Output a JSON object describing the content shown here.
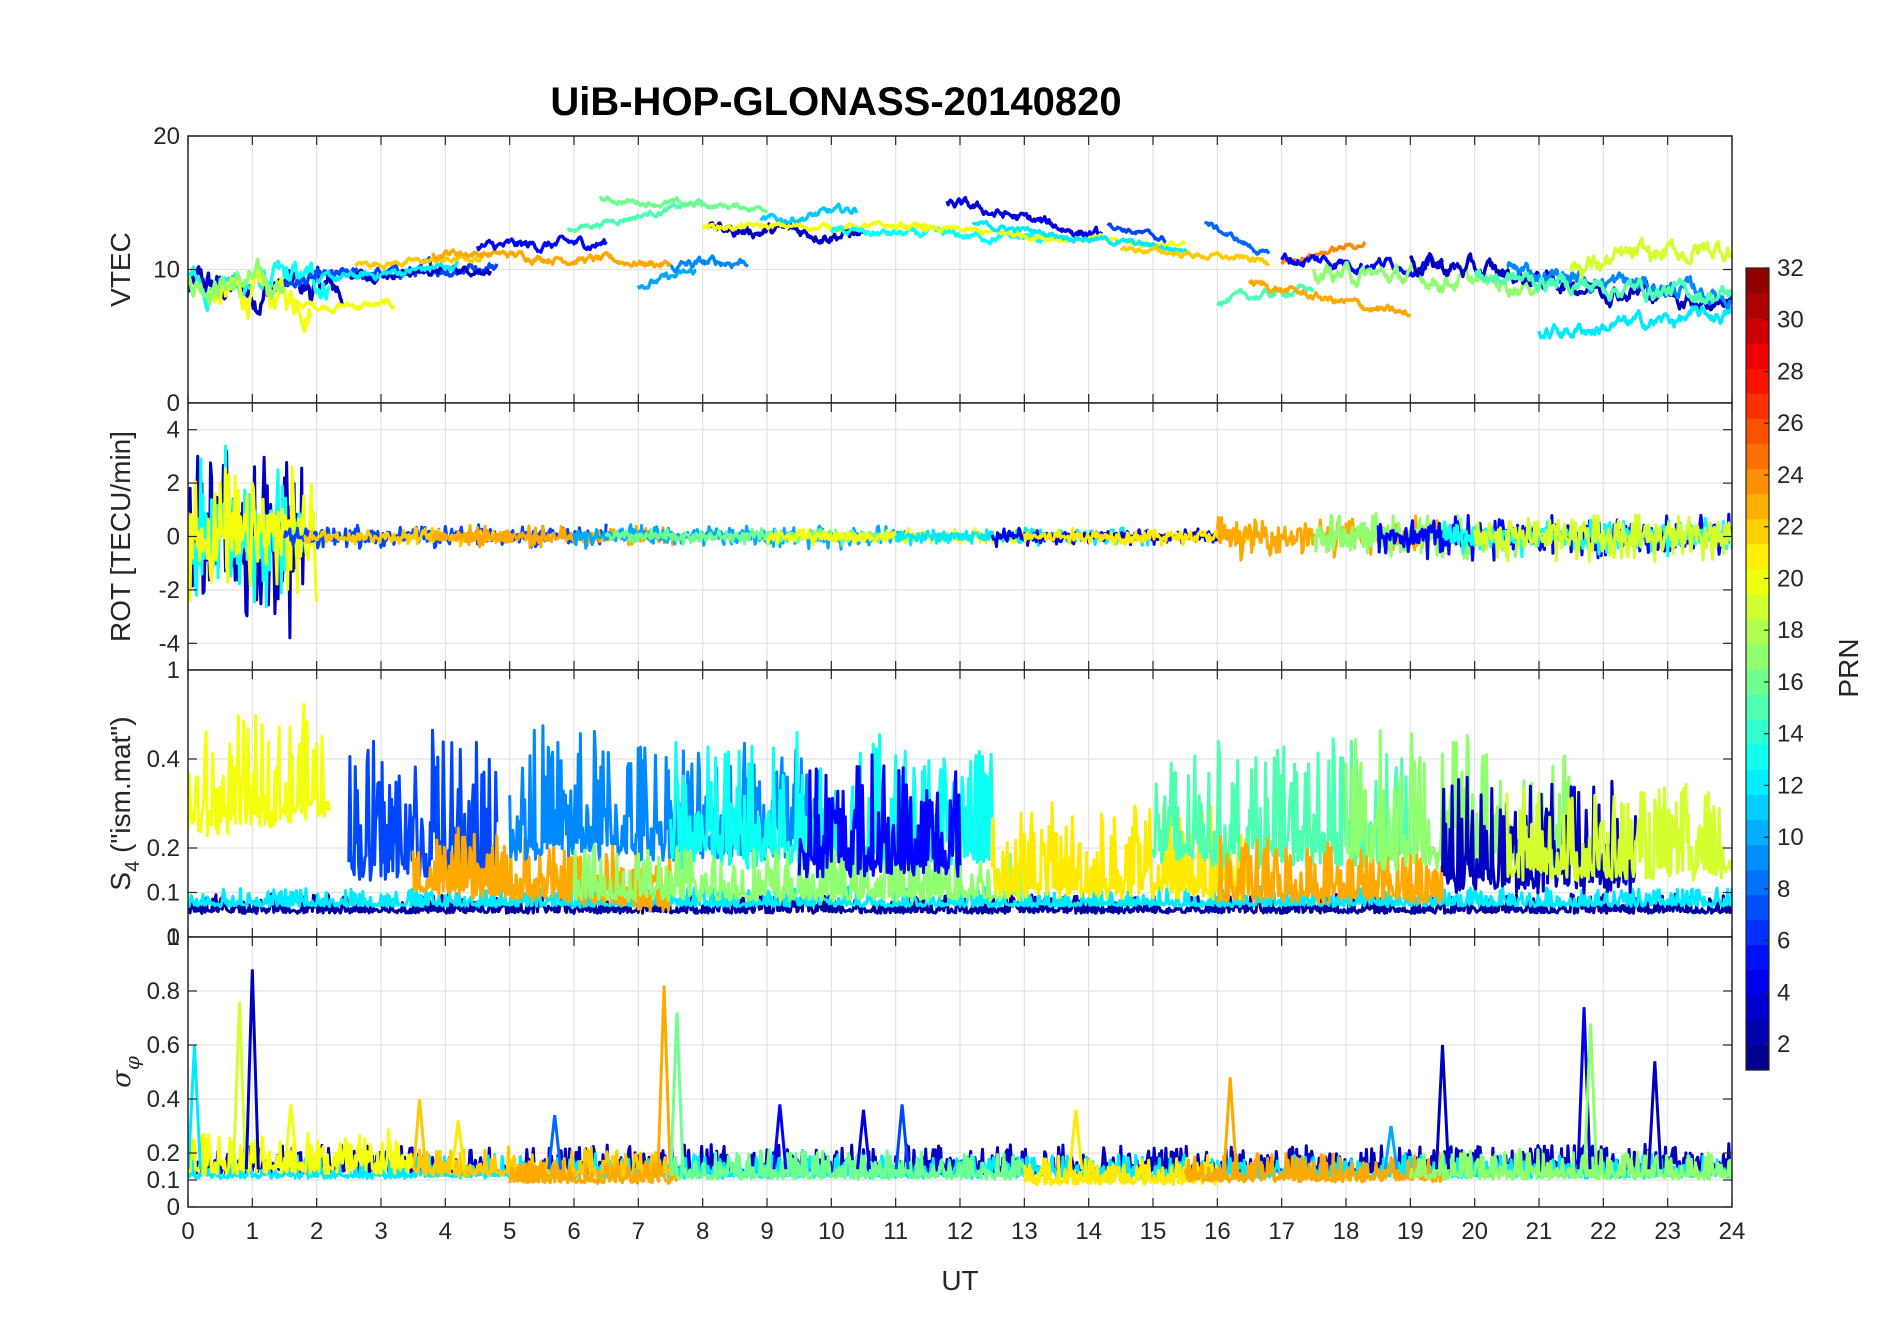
{
  "chart_data": {
    "type": "line",
    "title": "UiB-HOP-GLONASS-20140820",
    "xlabel": "UT",
    "xlim": [
      0,
      24
    ],
    "xticks": [
      "0",
      "1",
      "2",
      "3",
      "4",
      "5",
      "6",
      "7",
      "8",
      "9",
      "10",
      "11",
      "12",
      "13",
      "14",
      "15",
      "16",
      "17",
      "18",
      "19",
      "20",
      "21",
      "22",
      "23",
      "24"
    ],
    "panels": [
      {
        "id": "vtec",
        "ylabel": "VTEC",
        "ylim": [
          0,
          20
        ],
        "yticks": [
          {
            "v": 0,
            "t": "0"
          },
          {
            "v": 10,
            "t": "10"
          },
          {
            "v": 20,
            "t": "20"
          }
        ],
        "segments": [
          {
            "prn": 3,
            "start": 0,
            "end": 2.4,
            "level": 8.5,
            "trend": 0,
            "noise": 1.6
          },
          {
            "prn": 13,
            "start": 0,
            "end": 2.2,
            "level": 8.8,
            "trend": 0.3,
            "noise": 1.4
          },
          {
            "prn": 20,
            "start": 0.3,
            "end": 1.9,
            "level": 8.2,
            "trend": -0.5,
            "noise": 1.6
          },
          {
            "prn": 17,
            "start": 0,
            "end": 1.5,
            "level": 9.0,
            "trend": 0,
            "noise": 1.2
          },
          {
            "prn": 20,
            "start": 1.6,
            "end": 3.2,
            "level": 7.3,
            "trend": 0,
            "noise": 0.4
          },
          {
            "prn": 7,
            "start": 1.5,
            "end": 4.8,
            "level": 9.0,
            "trend": 1.4,
            "noise": 0.6
          },
          {
            "prn": 3,
            "start": 2.5,
            "end": 4.7,
            "level": 9.6,
            "trend": 0.5,
            "noise": 0.4
          },
          {
            "prn": 12,
            "start": 2.0,
            "end": 4.2,
            "level": 9.1,
            "trend": 1.2,
            "noise": 0.4
          },
          {
            "prn": 22,
            "start": 2.6,
            "end": 4.6,
            "level": 10.4,
            "trend": 0.4,
            "noise": 0.3
          },
          {
            "prn": 23,
            "start": 3.8,
            "end": 7.5,
            "level": 11.4,
            "trend": -1.0,
            "noise": 0.4
          },
          {
            "prn": 5,
            "start": 4.5,
            "end": 6.5,
            "level": 11.6,
            "trend": 0.4,
            "noise": 0.5
          },
          {
            "prn": 15,
            "start": 5.9,
            "end": 8.0,
            "level": 13.0,
            "trend": 2.0,
            "noise": 0.3
          },
          {
            "prn": 16,
            "start": 6.4,
            "end": 9.0,
            "level": 15.2,
            "trend": -0.6,
            "noise": 0.3
          },
          {
            "prn": 10,
            "start": 7.0,
            "end": 7.9,
            "level": 8.8,
            "trend": 1.0,
            "noise": 0.4
          },
          {
            "prn": 9,
            "start": 7.5,
            "end": 8.7,
            "level": 10.2,
            "trend": 0.5,
            "noise": 0.5
          },
          {
            "prn": 3,
            "start": 8.1,
            "end": 10.5,
            "level": 13.0,
            "trend": -0.3,
            "noise": 0.6
          },
          {
            "prn": 11,
            "start": 8.9,
            "end": 10.4,
            "level": 13.5,
            "trend": 1.0,
            "noise": 0.4
          },
          {
            "prn": 20,
            "start": 8.0,
            "end": 11.5,
            "level": 13.2,
            "trend": 0,
            "noise": 0.3
          },
          {
            "prn": 13,
            "start": 10.0,
            "end": 13.5,
            "level": 12.8,
            "trend": -0.5,
            "noise": 0.4
          },
          {
            "prn": 4,
            "start": 11.8,
            "end": 14.2,
            "level": 15.0,
            "trend": -2.5,
            "noise": 0.5
          },
          {
            "prn": 20,
            "start": 11.0,
            "end": 15.5,
            "level": 13.2,
            "trend": -1.4,
            "noise": 0.3
          },
          {
            "prn": 12,
            "start": 12.2,
            "end": 15.6,
            "level": 13.4,
            "trend": -2.0,
            "noise": 0.3
          },
          {
            "prn": 7,
            "start": 14.3,
            "end": 15.2,
            "level": 13.4,
            "trend": -1.2,
            "noise": 0.3
          },
          {
            "prn": 8,
            "start": 15.8,
            "end": 16.8,
            "level": 13.5,
            "trend": -2.5,
            "noise": 0.3
          },
          {
            "prn": 22,
            "start": 14.5,
            "end": 16.8,
            "level": 11.6,
            "trend": -1.0,
            "noise": 0.3
          },
          {
            "prn": 15,
            "start": 16.0,
            "end": 17.5,
            "level": 7.6,
            "trend": 1.0,
            "noise": 0.4
          },
          {
            "prn": 23,
            "start": 16.5,
            "end": 19.0,
            "level": 9.0,
            "trend": -2.5,
            "noise": 0.4
          },
          {
            "prn": 24,
            "start": 17.0,
            "end": 18.3,
            "level": 10.6,
            "trend": 1.4,
            "noise": 0.3
          },
          {
            "prn": 5,
            "start": 17.0,
            "end": 19.5,
            "level": 10.8,
            "trend": -0.5,
            "noise": 0.6
          },
          {
            "prn": 17,
            "start": 17.5,
            "end": 21.0,
            "level": 9.8,
            "trend": -1.0,
            "noise": 0.8
          },
          {
            "prn": 3,
            "start": 19.0,
            "end": 24,
            "level": 10.5,
            "trend": -3.0,
            "noise": 0.9
          },
          {
            "prn": 12,
            "start": 21.0,
            "end": 24,
            "level": 5.2,
            "trend": 1.5,
            "noise": 0.7
          },
          {
            "prn": 9,
            "start": 20.5,
            "end": 24,
            "level": 10.0,
            "trend": -2.0,
            "noise": 0.8
          },
          {
            "prn": 19,
            "start": 21.5,
            "end": 24,
            "level": 10.2,
            "trend": 1.5,
            "noise": 1.0
          },
          {
            "prn": 15,
            "start": 20.0,
            "end": 24,
            "level": 9.5,
            "trend": -1.5,
            "noise": 0.8
          }
        ]
      },
      {
        "id": "rot",
        "ylabel": "ROT [TECU/min]",
        "ylim": [
          -5,
          5
        ],
        "yticks": [
          {
            "v": -4,
            "t": "-4"
          },
          {
            "v": -2,
            "t": "-2"
          },
          {
            "v": 0,
            "t": "0"
          },
          {
            "v": 2,
            "t": "2"
          },
          {
            "v": 4,
            "t": "4"
          }
        ],
        "segments": [
          {
            "prn": 3,
            "start": 0,
            "end": 1.8,
            "level": 0,
            "trend": 0,
            "noise": 4.2
          },
          {
            "prn": 13,
            "start": 0,
            "end": 1.8,
            "level": 0,
            "trend": 0,
            "noise": 3.5
          },
          {
            "prn": 20,
            "start": 0,
            "end": 2.0,
            "level": 0,
            "trend": 0,
            "noise": 3.0
          },
          {
            "prn": 7,
            "start": 1.5,
            "end": 6.5,
            "level": 0,
            "trend": 0,
            "noise": 0.5
          },
          {
            "prn": 22,
            "start": 1.8,
            "end": 5.0,
            "level": 0,
            "trend": 0,
            "noise": 0.4
          },
          {
            "prn": 23,
            "start": 3.8,
            "end": 7.6,
            "level": 0,
            "trend": 0,
            "noise": 0.45
          },
          {
            "prn": 10,
            "start": 6.0,
            "end": 11.2,
            "level": 0,
            "trend": 0,
            "noise": 0.5
          },
          {
            "prn": 16,
            "start": 6.5,
            "end": 11.0,
            "level": 0,
            "trend": 0,
            "noise": 0.35
          },
          {
            "prn": 20,
            "start": 9.0,
            "end": 13.0,
            "level": 0,
            "trend": 0,
            "noise": 0.35
          },
          {
            "prn": 12,
            "start": 11.0,
            "end": 15.0,
            "level": 0,
            "trend": 0,
            "noise": 0.4
          },
          {
            "prn": 4,
            "start": 12.5,
            "end": 16.0,
            "level": 0,
            "trend": 0,
            "noise": 0.4
          },
          {
            "prn": 21,
            "start": 13.0,
            "end": 16.5,
            "level": 0,
            "trend": 0,
            "noise": 0.4
          },
          {
            "prn": 23,
            "start": 16.0,
            "end": 19.5,
            "level": 0,
            "trend": 0,
            "noise": 0.9
          },
          {
            "prn": 17,
            "start": 17.5,
            "end": 21.0,
            "level": 0,
            "trend": 0,
            "noise": 1.0
          },
          {
            "prn": 5,
            "start": 18.5,
            "end": 24,
            "level": 0,
            "trend": 0,
            "noise": 1.0
          },
          {
            "prn": 13,
            "start": 19.5,
            "end": 24,
            "level": 0,
            "trend": 0,
            "noise": 0.8
          },
          {
            "prn": 19,
            "start": 20.0,
            "end": 24,
            "level": 0,
            "trend": 0,
            "noise": 1.1
          }
        ]
      },
      {
        "id": "s4",
        "ylabel": "S",
        "ylabel_sub": "4",
        "ylabel_suffix": " (\"ism.mat\")",
        "ylim": [
          0,
          0.6
        ],
        "yticks": [
          {
            "v": 0,
            "t": "0"
          },
          {
            "v": 0.1,
            "t": "0.1"
          },
          {
            "v": 0.2,
            "t": "0.2"
          },
          {
            "v": 0.4,
            "t": "0.4"
          }
        ],
        "ytick_extra": "1",
        "segments": [
          {
            "prn": 2,
            "start": 0,
            "end": 24,
            "level": 0.06,
            "trend": 0,
            "noise": 0.02
          },
          {
            "prn": 12,
            "start": 0,
            "end": 24,
            "level": 0.075,
            "trend": 0,
            "noise": 0.02
          },
          {
            "prn": 20,
            "start": 0,
            "end": 2.2,
            "level": 0.26,
            "trend": 0.05,
            "noise": 0.12
          },
          {
            "prn": 7,
            "start": 2.5,
            "end": 4.8,
            "level": 0.18,
            "trend": 0,
            "noise": 0.16
          },
          {
            "prn": 23,
            "start": 3.5,
            "end": 7.5,
            "level": 0.12,
            "trend": -0.04,
            "noise": 0.07
          },
          {
            "prn": 9,
            "start": 5.0,
            "end": 9.8,
            "level": 0.22,
            "trend": 0,
            "noise": 0.14
          },
          {
            "prn": 13,
            "start": 7.5,
            "end": 12.5,
            "level": 0.2,
            "trend": 0,
            "noise": 0.14
          },
          {
            "prn": 17,
            "start": 6.0,
            "end": 13.0,
            "level": 0.1,
            "trend": 0,
            "noise": 0.06
          },
          {
            "prn": 5,
            "start": 9.5,
            "end": 12.0,
            "level": 0.18,
            "trend": 0,
            "noise": 0.13
          },
          {
            "prn": 21,
            "start": 12.5,
            "end": 16.5,
            "level": 0.12,
            "trend": 0,
            "noise": 0.1
          },
          {
            "prn": 15,
            "start": 15.0,
            "end": 19.0,
            "level": 0.2,
            "trend": 0,
            "noise": 0.13
          },
          {
            "prn": 23,
            "start": 16.0,
            "end": 19.5,
            "level": 0.1,
            "trend": 0,
            "noise": 0.07
          },
          {
            "prn": 17,
            "start": 18.0,
            "end": 21.5,
            "level": 0.2,
            "trend": 0,
            "noise": 0.14
          },
          {
            "prn": 3,
            "start": 19.5,
            "end": 22.5,
            "level": 0.14,
            "trend": 0,
            "noise": 0.12
          },
          {
            "prn": 19,
            "start": 20.5,
            "end": 24,
            "level": 0.16,
            "trend": 0,
            "noise": 0.1
          }
        ]
      },
      {
        "id": "sigma",
        "ylabel": "σ",
        "ylabel_sub": "φ",
        "ylim": [
          0,
          1
        ],
        "yticks": [
          {
            "v": 0,
            "t": "0"
          },
          {
            "v": 0.1,
            "t": "0.1"
          },
          {
            "v": 0.2,
            "t": "0.2"
          },
          {
            "v": 0.4,
            "t": "0.4"
          },
          {
            "v": 0.6,
            "t": "0.6"
          },
          {
            "v": 0.8,
            "t": "0.8"
          }
        ],
        "ytick_extra": "1",
        "segments": [
          {
            "prn": 3,
            "start": 0,
            "end": 24,
            "level": 0.14,
            "trend": 0,
            "noise": 0.05
          },
          {
            "prn": 12,
            "start": 0,
            "end": 24,
            "level": 0.12,
            "trend": 0,
            "noise": 0.04
          },
          {
            "prn": 20,
            "start": 0,
            "end": 3.5,
            "level": 0.15,
            "trend": 0,
            "noise": 0.08
          },
          {
            "prn": 22,
            "start": 3.5,
            "end": 7.5,
            "level": 0.13,
            "trend": 0,
            "noise": 0.05
          },
          {
            "prn": 23,
            "start": 5.0,
            "end": 7.6,
            "level": 0.1,
            "trend": 0,
            "noise": 0.04
          },
          {
            "prn": 16,
            "start": 7.5,
            "end": 13.0,
            "level": 0.12,
            "trend": 0,
            "noise": 0.05
          },
          {
            "prn": 21,
            "start": 13.0,
            "end": 16.0,
            "level": 0.1,
            "trend": 0,
            "noise": 0.05
          },
          {
            "prn": 23,
            "start": 15.5,
            "end": 19.5,
            "level": 0.11,
            "trend": 0,
            "noise": 0.05
          },
          {
            "prn": 17,
            "start": 19.0,
            "end": 24,
            "level": 0.12,
            "trend": 0,
            "noise": 0.05
          }
        ],
        "spikes": [
          {
            "x": 0.1,
            "v": 0.6,
            "prn": 12
          },
          {
            "x": 0.8,
            "v": 0.76,
            "prn": 19
          },
          {
            "x": 1.0,
            "v": 0.88,
            "prn": 3
          },
          {
            "x": 1.6,
            "v": 0.38,
            "prn": 20
          },
          {
            "x": 3.6,
            "v": 0.4,
            "prn": 22
          },
          {
            "x": 4.2,
            "v": 0.32,
            "prn": 21
          },
          {
            "x": 5.7,
            "v": 0.34,
            "prn": 8
          },
          {
            "x": 7.4,
            "v": 0.82,
            "prn": 23
          },
          {
            "x": 7.6,
            "v": 0.72,
            "prn": 16
          },
          {
            "x": 9.2,
            "v": 0.38,
            "prn": 5
          },
          {
            "x": 10.5,
            "v": 0.36,
            "prn": 4
          },
          {
            "x": 11.1,
            "v": 0.38,
            "prn": 7
          },
          {
            "x": 13.8,
            "v": 0.36,
            "prn": 21
          },
          {
            "x": 16.2,
            "v": 0.48,
            "prn": 23
          },
          {
            "x": 18.7,
            "v": 0.3,
            "prn": 10
          },
          {
            "x": 19.5,
            "v": 0.6,
            "prn": 3
          },
          {
            "x": 21.7,
            "v": 0.74,
            "prn": 4
          },
          {
            "x": 21.8,
            "v": 0.68,
            "prn": 17
          },
          {
            "x": 22.8,
            "v": 0.54,
            "prn": 3
          }
        ]
      }
    ],
    "colorbar": {
      "label": "PRN",
      "min": 1,
      "max": 32,
      "ticks": [
        "2",
        "4",
        "6",
        "8",
        "10",
        "12",
        "14",
        "16",
        "18",
        "20",
        "22",
        "24",
        "26",
        "28",
        "30",
        "32"
      ],
      "colormap": "jet"
    }
  }
}
